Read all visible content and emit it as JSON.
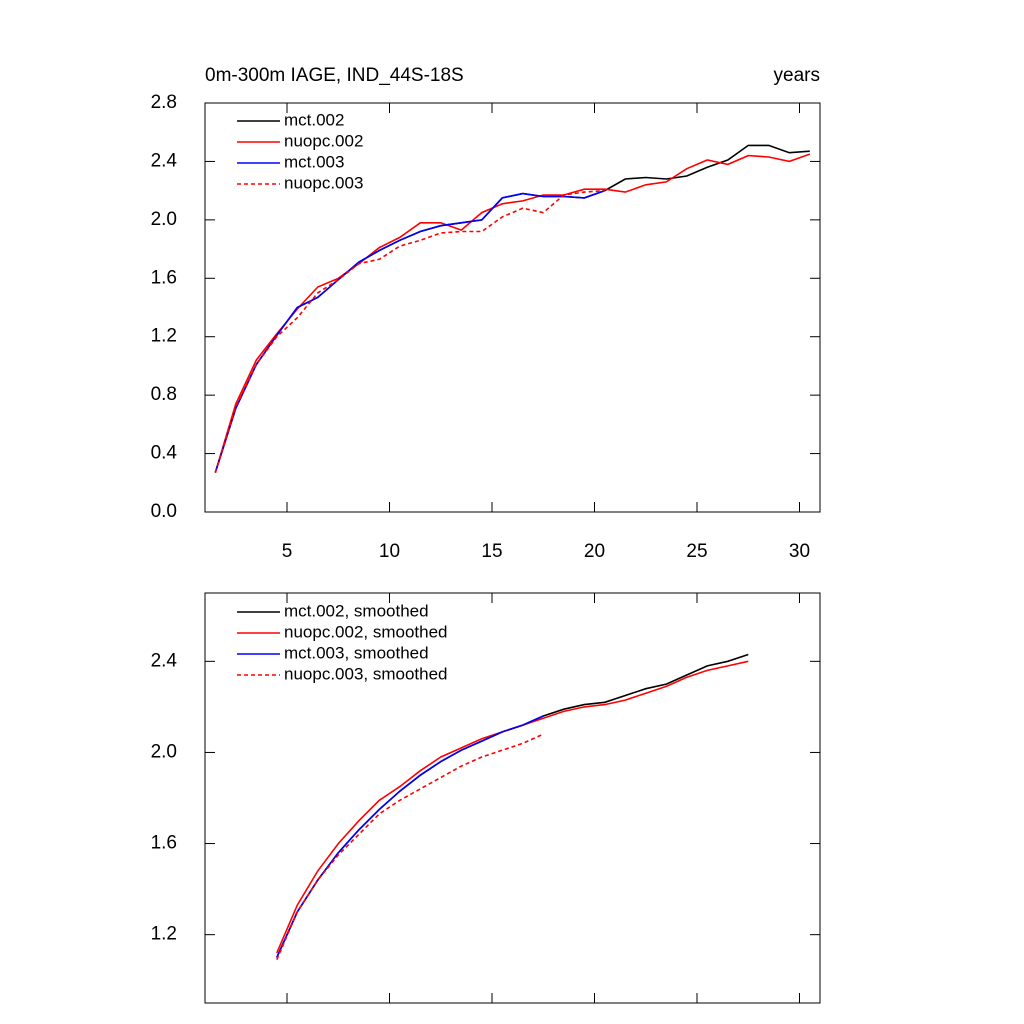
{
  "chart_data": [
    {
      "type": "line",
      "title": "0m-300m IAGE, IND_44S-18S",
      "subtitle": "years",
      "x": [
        1.5,
        2.5,
        3.5,
        4.5,
        5.5,
        6.5,
        7.5,
        8.5,
        9.5,
        10.5,
        11.5,
        12.5,
        13.5,
        14.5,
        15.5,
        16.5,
        17.5,
        18.5,
        19.5,
        20.5,
        21.5,
        22.5,
        23.5,
        24.5,
        25.5,
        26.5,
        27.5,
        28.5,
        29.5,
        30.5
      ],
      "series": [
        {
          "name": "mct.002",
          "color": "#000000",
          "dash": false,
          "values": [
            0.27,
            0.71,
            1.01,
            1.21,
            1.4,
            1.47,
            1.59,
            1.71,
            1.79,
            1.86,
            1.92,
            1.96,
            1.98,
            2.0,
            2.15,
            2.18,
            2.16,
            2.16,
            2.15,
            2.2,
            2.28,
            2.29,
            2.28,
            2.3,
            2.36,
            2.41,
            2.51,
            2.51,
            2.46,
            2.47
          ]
        },
        {
          "name": "nuopc.002",
          "color": "#ff0000",
          "dash": false,
          "values": [
            0.27,
            0.74,
            1.04,
            1.22,
            1.39,
            1.54,
            1.6,
            1.7,
            1.81,
            1.88,
            1.98,
            1.98,
            1.93,
            2.05,
            2.11,
            2.13,
            2.17,
            2.17,
            2.21,
            2.21,
            2.19,
            2.24,
            2.26,
            2.35,
            2.41,
            2.38,
            2.44,
            2.43,
            2.4,
            2.45
          ]
        },
        {
          "name": "mct.003",
          "color": "#0000ff",
          "dash": false,
          "values": [
            0.27,
            0.71,
            1.01,
            1.21,
            1.4,
            1.47,
            1.59,
            1.71,
            1.79,
            1.86,
            1.92,
            1.96,
            1.98,
            2.0,
            2.15,
            2.18,
            2.16,
            2.16,
            2.15,
            2.2,
            null,
            null,
            null,
            null,
            null,
            null,
            null,
            null,
            null,
            null
          ]
        },
        {
          "name": "nuopc.003",
          "color": "#ff0000",
          "dash": true,
          "values": [
            0.27,
            0.72,
            1.01,
            1.2,
            1.33,
            1.5,
            1.59,
            1.7,
            1.73,
            1.82,
            1.86,
            1.91,
            1.92,
            1.92,
            2.02,
            2.08,
            2.05,
            2.17,
            2.19,
            2.2,
            null,
            null,
            null,
            null,
            null,
            null,
            null,
            null,
            null,
            null
          ]
        }
      ],
      "xlim": [
        1,
        31
      ],
      "xticks": [
        5,
        10,
        15,
        20,
        25,
        30
      ],
      "show_xtick_labels": true,
      "ylim": [
        0,
        2.8
      ],
      "yticks": [
        {
          "value": 0,
          "label": "0.0"
        },
        0.4,
        0.8,
        1.2,
        1.6,
        {
          "value": 2,
          "label": "2.0"
        },
        2.4,
        2.8
      ]
    },
    {
      "type": "line",
      "x": [
        4.5,
        5.5,
        6.5,
        7.5,
        8.5,
        9.5,
        10.5,
        11.5,
        12.5,
        13.5,
        14.5,
        15.5,
        16.5,
        17.5,
        18.5,
        19.5,
        20.5,
        21.5,
        22.5,
        23.5,
        24.5,
        25.5,
        26.5,
        27.5
      ],
      "series": [
        {
          "name": "mct.002, smoothed",
          "color": "#000000",
          "dash": false,
          "values": [
            1.1,
            1.3,
            1.44,
            1.56,
            1.66,
            1.75,
            1.83,
            1.9,
            1.96,
            2.01,
            2.05,
            2.09,
            2.12,
            2.16,
            2.19,
            2.21,
            2.22,
            2.25,
            2.28,
            2.3,
            2.34,
            2.38,
            2.4,
            2.43
          ]
        },
        {
          "name": "nuopc.002, smoothed",
          "color": "#ff0000",
          "dash": false,
          "values": [
            1.12,
            1.33,
            1.48,
            1.6,
            1.7,
            1.79,
            1.85,
            1.92,
            1.98,
            2.02,
            2.06,
            2.09,
            2.12,
            2.15,
            2.18,
            2.2,
            2.21,
            2.23,
            2.26,
            2.29,
            2.33,
            2.36,
            2.38,
            2.4
          ]
        },
        {
          "name": "mct.003, smoothed",
          "color": "#0000ff",
          "dash": false,
          "values": [
            1.1,
            1.3,
            1.44,
            1.56,
            1.66,
            1.75,
            1.83,
            1.9,
            1.96,
            2.01,
            2.05,
            2.09,
            2.12,
            2.16,
            null,
            null,
            null,
            null,
            null,
            null,
            null,
            null,
            null,
            null
          ]
        },
        {
          "name": "nuopc.003, smoothed",
          "color": "#ff0000",
          "dash": true,
          "values": [
            1.09,
            1.3,
            1.44,
            1.55,
            1.64,
            1.73,
            1.79,
            1.84,
            1.89,
            1.94,
            1.98,
            2.01,
            2.04,
            2.08,
            null,
            null,
            null,
            null,
            null,
            null,
            null,
            null,
            null,
            null
          ]
        }
      ],
      "xlim": [
        1,
        31
      ],
      "xticks": [
        5,
        10,
        15,
        20,
        25,
        30
      ],
      "show_xtick_labels": false,
      "ylim": [
        0.9,
        2.7
      ],
      "yticks": [
        1.2,
        1.6,
        {
          "value": 2,
          "label": "2.0"
        },
        2.4
      ]
    }
  ]
}
